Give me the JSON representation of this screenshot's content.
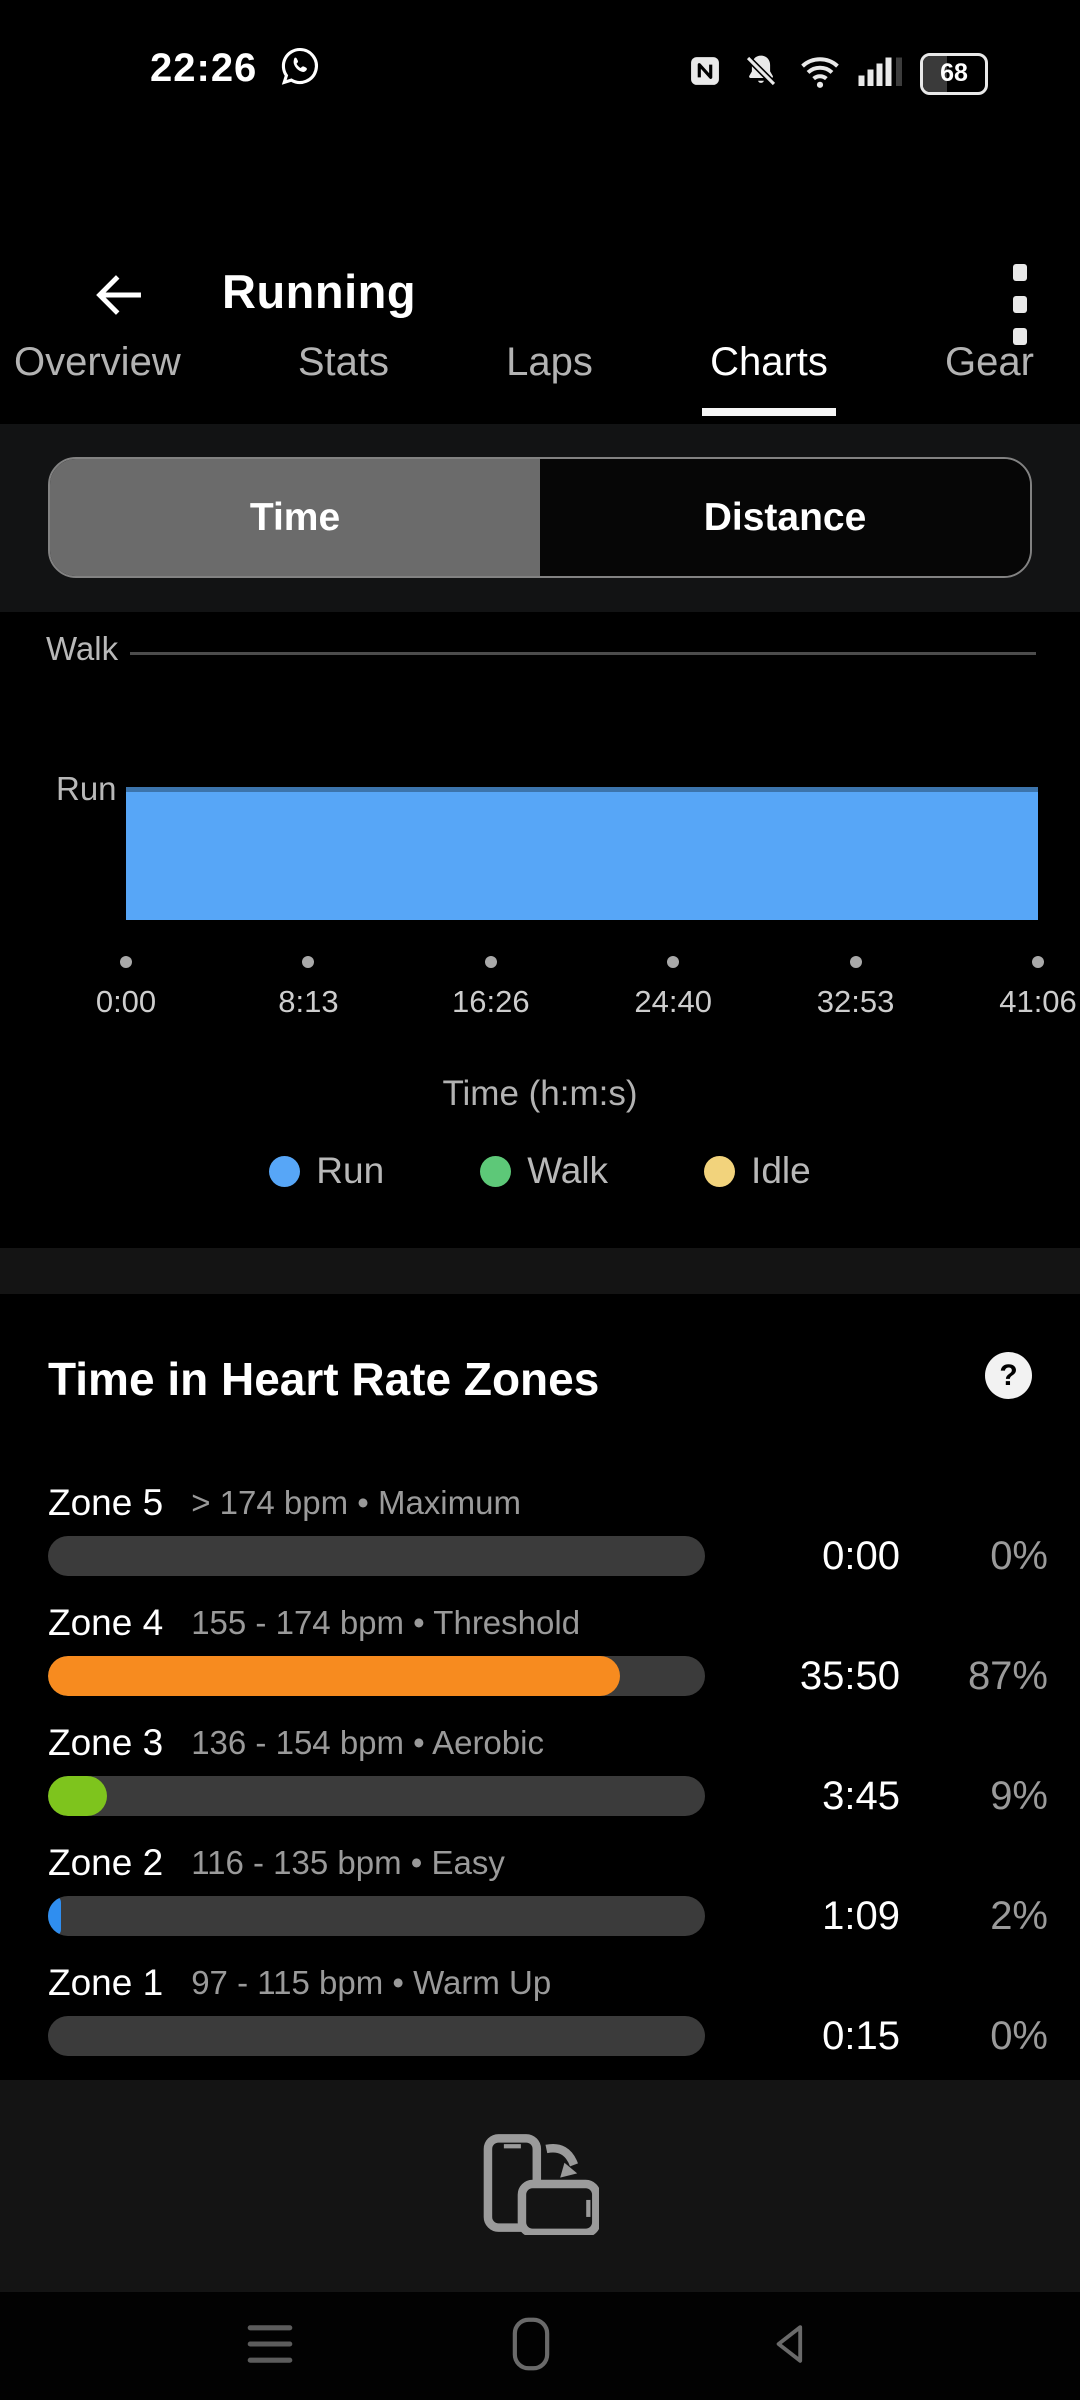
{
  "status_bar": {
    "time": "22:26",
    "battery_percent": "68",
    "icons": [
      "whatsapp-icon",
      "nfc-icon",
      "notifications-muted-icon",
      "wifi-icon",
      "signal-strength-icon",
      "battery-icon"
    ]
  },
  "header": {
    "title": "Running",
    "back_icon": "arrow-left-icon",
    "menu_icon": "kebab-menu-icon"
  },
  "tab_bar": {
    "tabs": [
      {
        "label": "Overview"
      },
      {
        "label": "Stats"
      },
      {
        "label": "Laps"
      },
      {
        "label": "Charts"
      },
      {
        "label": "Gear"
      }
    ],
    "active_tab": "Charts"
  },
  "view_toggle": {
    "options": [
      {
        "label": "Time"
      },
      {
        "label": "Distance"
      }
    ],
    "selected": "Time"
  },
  "chart_data": {
    "type": "bar",
    "subtype": "activity-timeline",
    "categories": [
      "Walk",
      "Run"
    ],
    "series": [
      {
        "name": "Run",
        "category": "Run",
        "start": "0:00",
        "end": "41:06",
        "color": "#57a6f7"
      }
    ],
    "x_ticks": [
      "0:00",
      "8:13",
      "16:26",
      "24:40",
      "32:53",
      "41:06"
    ],
    "x_range": [
      "0:00",
      "41:06"
    ],
    "xlabel": "Time (h:m:s)",
    "grid": false,
    "legend_position": "bottom",
    "legend": [
      {
        "label": "Run",
        "color": "#57a6f7"
      },
      {
        "label": "Walk",
        "color": "#5dc878"
      },
      {
        "label": "Idle",
        "color": "#f2d37c"
      }
    ]
  },
  "hr_zones": {
    "title": "Time in Heart Rate Zones",
    "help_icon_glyph": "?",
    "track_color": "#3b3b3b",
    "zones": [
      {
        "name": "Zone 5",
        "range": "> 174 bpm • Maximum",
        "time": "0:00",
        "percent": "0%",
        "fill_pct": 0,
        "fill_color": null
      },
      {
        "name": "Zone 4",
        "range": "155 - 174 bpm • Threshold",
        "time": "35:50",
        "percent": "87%",
        "fill_pct": 87,
        "fill_color": "#f78b1f"
      },
      {
        "name": "Zone 3",
        "range": "136 - 154 bpm • Aerobic",
        "time": "3:45",
        "percent": "9%",
        "fill_pct": 9,
        "fill_color": "#7ec41d"
      },
      {
        "name": "Zone 2",
        "range": "116 - 135 bpm • Easy",
        "time": "1:09",
        "percent": "2%",
        "fill_pct": 2,
        "fill_color": "#2f8ef0"
      },
      {
        "name": "Zone 1",
        "range": "97 - 115 bpm • Warm Up",
        "time": "0:15",
        "percent": "0%",
        "fill_pct": 0,
        "fill_color": null
      }
    ]
  },
  "rotate_hint": {
    "icon": "rotate-device-icon"
  },
  "nav_bar": {
    "icons": [
      "recents-icon",
      "home-icon",
      "back-icon"
    ]
  }
}
